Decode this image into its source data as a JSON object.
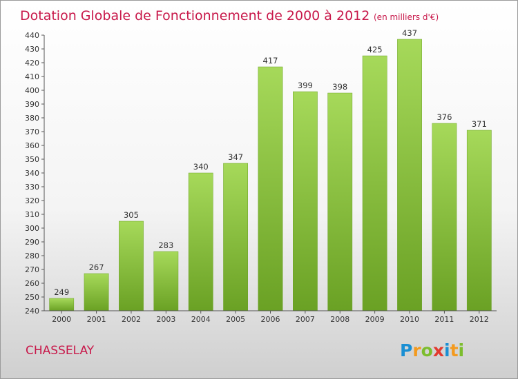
{
  "chart_data": {
    "type": "bar",
    "title": "Dotation Globale de Fonctionnement de 2000 à 2012",
    "subtitle": "(en milliers d'€)",
    "categories": [
      "2000",
      "2001",
      "2002",
      "2003",
      "2004",
      "2005",
      "2006",
      "2007",
      "2008",
      "2009",
      "2010",
      "2011",
      "2012"
    ],
    "values": [
      249,
      267,
      305,
      283,
      340,
      347,
      417,
      399,
      398,
      425,
      437,
      376,
      371
    ],
    "ylim": [
      240,
      440
    ],
    "ytick_step": 10,
    "grid": false,
    "bar_color": "#8cc43c",
    "bar_color_light": "#a6d95a",
    "bar_color_dark": "#6aa124"
  },
  "commune": "CHASSELAY",
  "logo": {
    "letters": [
      "P",
      "r",
      "o",
      "x",
      "i",
      "t",
      "i"
    ],
    "colors": [
      "#1a8fd3",
      "#f39a1e",
      "#7cbd2d",
      "#e23a2f",
      "#1a8fd3",
      "#f39a1e",
      "#7cbd2d"
    ]
  }
}
